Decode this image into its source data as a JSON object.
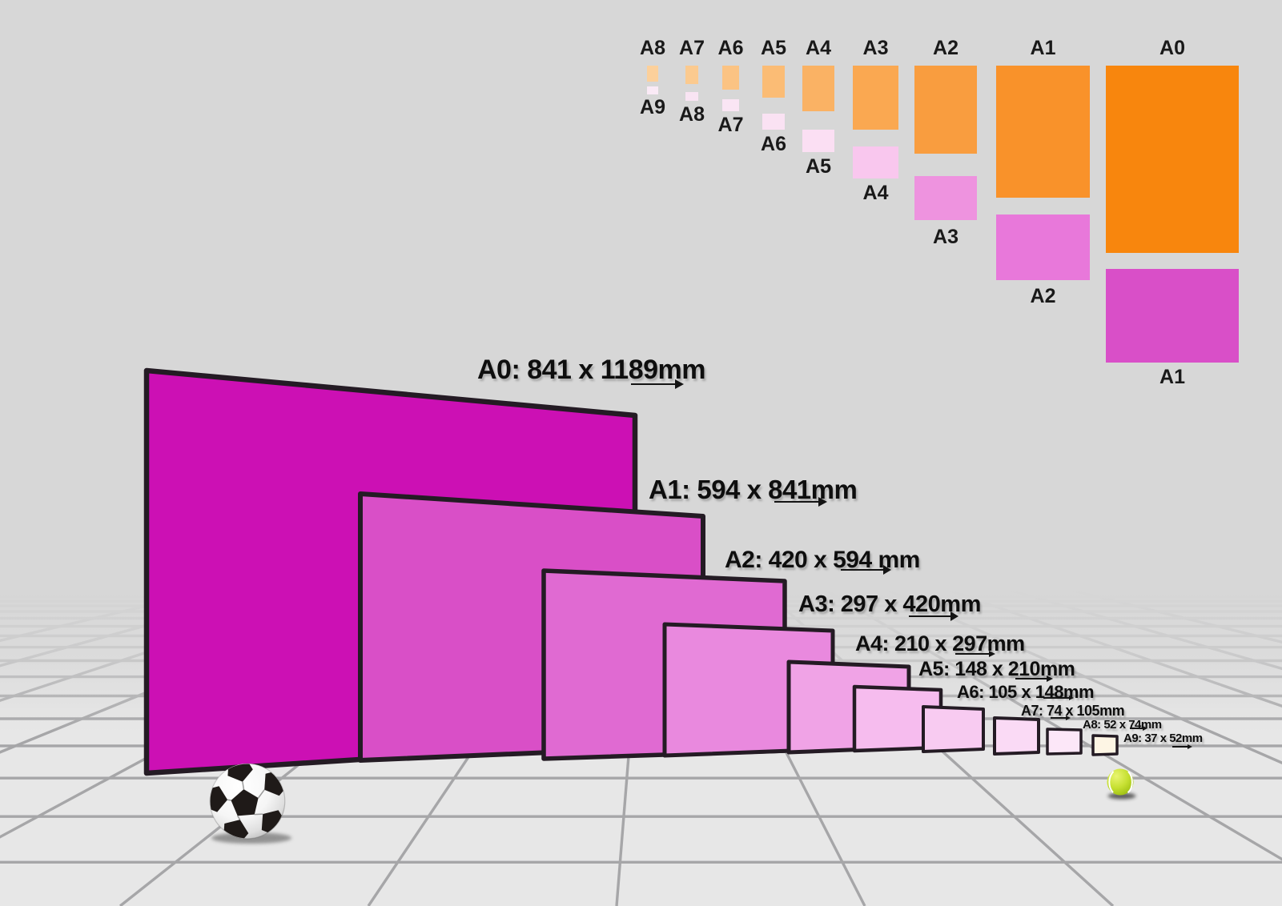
{
  "colors": {
    "background": "#d7d7d7",
    "floor": "#e7e7e7",
    "grid_line": "#a6a6a8",
    "sheet_border": "#241b24",
    "label_text": "#0e0e0e",
    "soccer_ball_white": "#f6f6f6",
    "soccer_ball_black": "#1f1a18",
    "tennis_ball_green": "#b8d42e"
  },
  "size_comparison_chart": {
    "columns": [
      {
        "portrait_label": "A8",
        "portrait_color": "#fcd09b",
        "landscape_label": "A9",
        "landscape_color": "#faeaf6"
      },
      {
        "portrait_label": "A7",
        "portrait_color": "#fbca8f",
        "landscape_label": "A8",
        "landscape_color": "#f9e4f3"
      },
      {
        "portrait_label": "A6",
        "portrait_color": "#fbc383",
        "landscape_label": "A7",
        "landscape_color": "#fae5f4"
      },
      {
        "portrait_label": "A5",
        "portrait_color": "#fbbc75",
        "landscape_label": "A6",
        "landscape_color": "#fae2f3"
      },
      {
        "portrait_label": "A4",
        "portrait_color": "#fab264",
        "landscape_label": "A5",
        "landscape_color": "#fbdff3"
      },
      {
        "portrait_label": "A3",
        "portrait_color": "#faa851",
        "landscape_label": "A4",
        "landscape_color": "#f9c7ee"
      },
      {
        "portrait_label": "A2",
        "portrait_color": "#f99d3f",
        "landscape_label": "A3",
        "landscape_color": "#ee93df"
      },
      {
        "portrait_label": "A1",
        "portrait_color": "#f9922a",
        "landscape_label": "A2",
        "landscape_color": "#e878da"
      },
      {
        "portrait_label": "A0",
        "portrait_color": "#f8860d",
        "landscape_label": "A1",
        "landscape_color": "#d94fc8"
      }
    ]
  },
  "sheet_lineup": {
    "sheets": [
      {
        "name": "A0",
        "dimension_label": "A0: 841 x 1189mm",
        "fill": "#cc10b4"
      },
      {
        "name": "A1",
        "dimension_label": "A1: 594 x 841mm",
        "fill": "#d94fc7"
      },
      {
        "name": "A2",
        "dimension_label": "A2: 420 x 594 mm",
        "fill": "#e06ad2"
      },
      {
        "name": "A3",
        "dimension_label": "A3: 297 x 420mm",
        "fill": "#e989de"
      },
      {
        "name": "A4",
        "dimension_label": "A4: 210 x 297mm",
        "fill": "#f0a3e6"
      },
      {
        "name": "A5",
        "dimension_label": "A5: 148 x 210mm",
        "fill": "#f6bcee"
      },
      {
        "name": "A6",
        "dimension_label": "A6: 105 x 148mm",
        "fill": "#f8cbf1"
      },
      {
        "name": "A7",
        "dimension_label": "A7: 74 x 105mm",
        "fill": "#fadaf5"
      },
      {
        "name": "A8",
        "dimension_label": "A8: 52 x 74mm",
        "fill": "#fce7f8"
      },
      {
        "name": "A9",
        "dimension_label": "A9: 37 x 52mm",
        "fill": "#fdf5e4"
      }
    ]
  }
}
